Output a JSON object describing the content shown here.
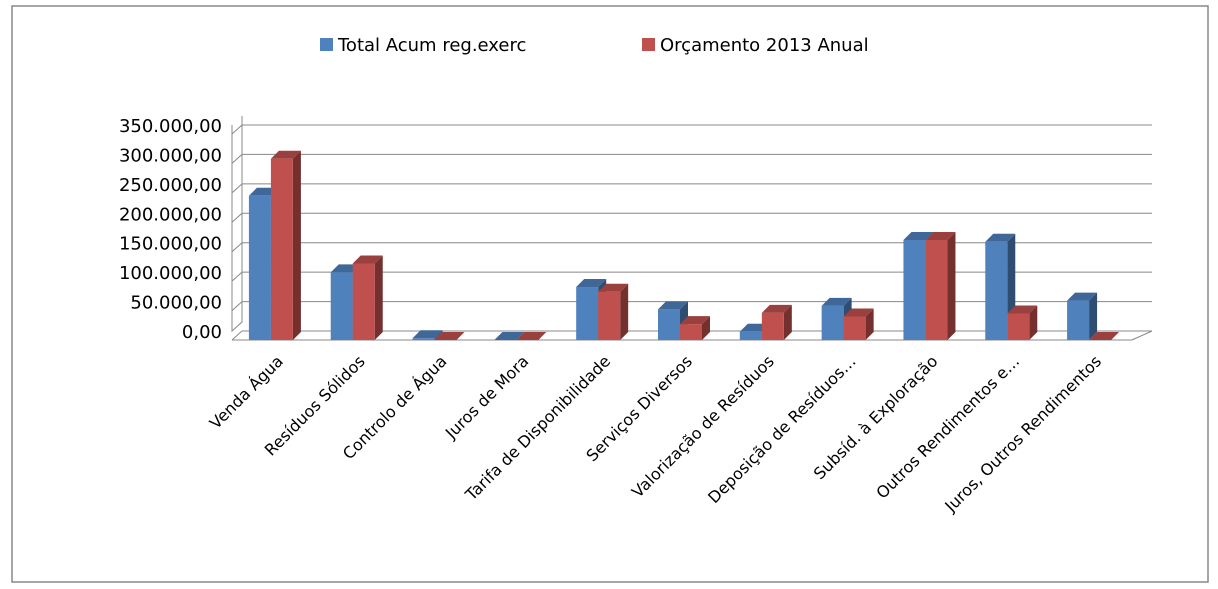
{
  "chart_data": {
    "type": "bar3d",
    "categories": [
      "Venda Água",
      "Resíduos Sólidos",
      "Controlo de Água",
      "Juros de Mora",
      "Tarifa de Disponibilidade",
      "Serviços Diversos",
      "Valorização de Resíduos",
      "Deposição de Resíduos…",
      "Subsíd. à Exploração",
      "Outros Rendimentos e…",
      "Juros, Outros Rendimentos"
    ],
    "series": [
      {
        "name": "Total Acum reg.exerc",
        "color": "#4f81bd",
        "values": [
          245000,
          115000,
          3000,
          0,
          90000,
          52000,
          14000,
          58000,
          170000,
          167000,
          67000
        ]
      },
      {
        "name": "Orçamento 2013 Anual",
        "color": "#c0504d",
        "values": [
          308000,
          130000,
          0,
          0,
          82000,
          27000,
          46000,
          40000,
          170000,
          45000,
          0
        ]
      }
    ],
    "ylim": [
      0,
      350000
    ],
    "yticks": [
      {
        "value": 0,
        "label": "0,00"
      },
      {
        "value": 50000,
        "label": "50.000,00"
      },
      {
        "value": 100000,
        "label": "100.000,00"
      },
      {
        "value": 150000,
        "label": "150.000,00"
      },
      {
        "value": 200000,
        "label": "200.000,00"
      },
      {
        "value": 250000,
        "label": "250.000,00"
      },
      {
        "value": 300000,
        "label": "300.000,00"
      },
      {
        "value": 350000,
        "label": "350.000,00"
      }
    ],
    "grid": true,
    "legend": "top"
  }
}
